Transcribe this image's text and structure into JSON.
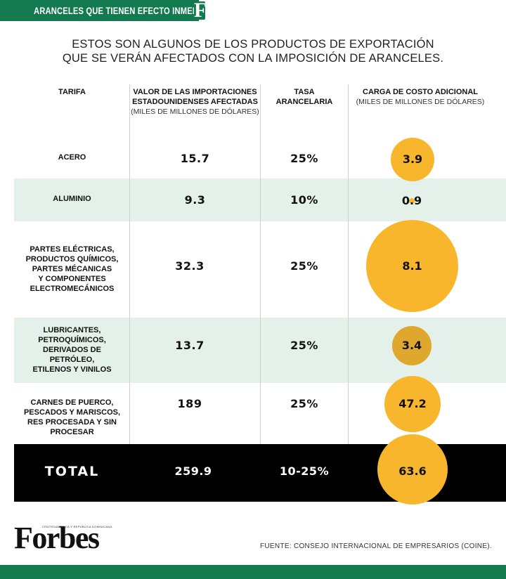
{
  "header": {
    "title": "ARANCELES QUE TIENEN EFECTO INMEDIATO",
    "brand_mark": "F",
    "accent_color": "#137a4f"
  },
  "intro": {
    "line1": "ESTOS SON ALGUNOS DE LOS PRODUCTOS DE EXPORTACIÓN",
    "line2": "QUE SE VERÁN AFECTADOS CON LA IMPOSICIÓN DE ARANCELES."
  },
  "columns": {
    "tarifa": "TARIFA",
    "valor_line1": "VALOR DE LAS IMPORTACIONES",
    "valor_line2": "ESTADOUNIDENSES AFECTADAS",
    "valor_sub": "(MILES DE MILLONES DE DÓLARES)",
    "tasa_line1": "TASA",
    "tasa_line2": "ARANCELARIA",
    "carga_line1": "CARGA DE COSTO ADICIONAL",
    "carga_sub": "(MILES DE MILLONES DE DÓLARES)"
  },
  "rows": [
    {
      "label_lines": [
        "ACERO"
      ],
      "valor": "15.7",
      "tasa": "25%",
      "carga": "3.9"
    },
    {
      "label_lines": [
        "ALUMINIO"
      ],
      "valor": "9.3",
      "tasa": "10%",
      "carga": "0.9"
    },
    {
      "label_lines": [
        "PARTES ELÉCTRICAS,",
        "PRODUCTOS QUÍMICOS,",
        "PARTES MÉCANICAS",
        "Y COMPONENTES",
        "ELECTROMECÁNICOS"
      ],
      "valor": "32.3",
      "tasa": "25%",
      "carga": "8.1"
    },
    {
      "label_lines": [
        "LUBRICANTES,",
        "PETROQUÍMICOS,",
        "DERIVADOS DE",
        "PETRÓLEO,",
        "ETILENOS Y VINILOS"
      ],
      "valor": "13.7",
      "tasa": "25%",
      "carga": "3.4"
    },
    {
      "label_lines": [
        "CARNES DE PUERCO,",
        "PESCADOS Y MARISCOS,",
        "RES PROCESADA Y SIN",
        "PROCESAR"
      ],
      "valor": "189",
      "tasa": "25%",
      "carga": "47.2"
    }
  ],
  "total": {
    "label": "TOTAL",
    "valor": "259.9",
    "tasa": "10-25%",
    "carga": "63.6"
  },
  "chart_data": {
    "type": "table",
    "columns": [
      "TARIFA",
      "VALOR DE LAS IMPORTACIONES ESTADOUNIDENSES AFECTADAS (MILES DE MILLONES DE DÓLARES)",
      "TASA ARANCELARIA",
      "CARGA DE COSTO ADICIONAL (MILES DE MILLONES DE DÓLARES)"
    ],
    "categories": [
      "ACERO",
      "ALUMINIO",
      "PARTES ELÉCTRICAS, PRODUCTOS QUÍMICOS, PARTES MÉCANICAS Y COMPONENTES ELECTROMECÁNICOS",
      "LUBRICANTES, PETROQUÍMICOS, DERIVADOS DE PETRÓLEO, ETILENOS Y VINILOS",
      "CARNES DE PUERCO, PESCADOS Y MARISCOS, RES PROCESADA Y SIN PROCESAR",
      "TOTAL"
    ],
    "series": [
      {
        "name": "VALOR DE LAS IMPORTACIONES ESTADOUNIDENSES AFECTADAS",
        "values": [
          15.7,
          9.3,
          32.3,
          13.7,
          189,
          259.9
        ]
      },
      {
        "name": "TASA ARANCELARIA",
        "values": [
          "25%",
          "10%",
          "25%",
          "25%",
          "25%",
          "10-25%"
        ]
      },
      {
        "name": "CARGA DE COSTO ADICIONAL",
        "values": [
          3.9,
          0.9,
          8.1,
          3.4,
          47.2,
          63.6
        ]
      }
    ],
    "bubble_color": "#f8b62d",
    "alt_row_color": "#e4f1ea"
  },
  "footer": {
    "brand": "Forbes",
    "brand_sub": "CENTROAMÉRICA Y REPÚBLICA DOMINICANA",
    "source": "FUENTE: CONSEJO INTERNACIONAL DE EMPRESARIOS (COINE)."
  }
}
